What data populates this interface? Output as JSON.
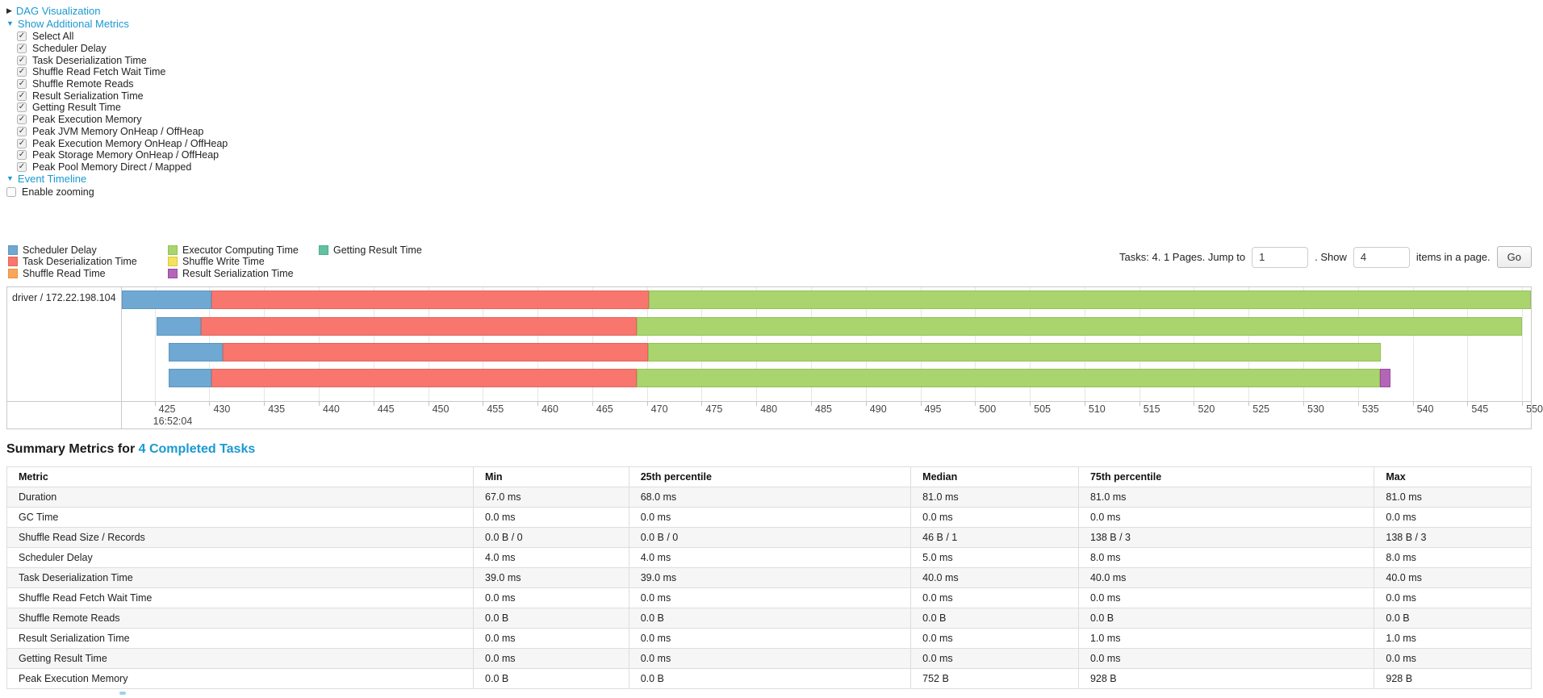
{
  "colors": {
    "link": "#1a99d1"
  },
  "controls": {
    "dag_label": "DAG Visualization",
    "show_metrics_label": "Show Additional Metrics",
    "checkboxes": [
      "Select All",
      "Scheduler Delay",
      "Task Deserialization Time",
      "Shuffle Read Fetch Wait Time",
      "Shuffle Remote Reads",
      "Result Serialization Time",
      "Getting Result Time",
      "Peak Execution Memory",
      "Peak JVM Memory OnHeap / OffHeap",
      "Peak Execution Memory OnHeap / OffHeap",
      "Peak Storage Memory OnHeap / OffHeap",
      "Peak Pool Memory Direct / Mapped"
    ],
    "event_timeline_label": "Event Timeline",
    "enable_zooming_label": "Enable zooming"
  },
  "pagination": {
    "tasks_text": "Tasks: 4. 1 Pages. Jump to",
    "jump_value": "1",
    "show_text": ". Show",
    "show_value": "4",
    "items_text": "items in a page.",
    "go_label": "Go"
  },
  "chart_data": {
    "type": "timeline",
    "row_label": "driver / 172.22.198.104",
    "time_label": "16:52:04",
    "axis": {
      "min": 422.0,
      "max": 550.8,
      "tick_start": 425,
      "tick_end": 550,
      "tick_step": 5
    },
    "palette": {
      "scheduler_delay": {
        "fill": "#6fa8d2",
        "border": "#5b97c2"
      },
      "task_deserialization": {
        "fill": "#f8766d",
        "border": "#e5655d"
      },
      "shuffle_read": {
        "fill": "#f9a65a",
        "border": "#e8933f"
      },
      "executor_computing": {
        "fill": "#a9d46e",
        "border": "#93c254"
      },
      "shuffle_write": {
        "fill": "#f2e25d",
        "border": "#dcc93c"
      },
      "result_serialization": {
        "fill": "#b465b8",
        "border": "#9a4d9e"
      },
      "getting_result": {
        "fill": "#61c0a1",
        "border": "#4daf8d"
      }
    },
    "legend_columns": [
      [
        {
          "label": "Scheduler Delay",
          "metric": "scheduler_delay"
        },
        {
          "label": "Task Deserialization Time",
          "metric": "task_deserialization"
        },
        {
          "label": "Shuffle Read Time",
          "metric": "shuffle_read"
        }
      ],
      [
        {
          "label": "Executor Computing Time",
          "metric": "executor_computing"
        },
        {
          "label": "Shuffle Write Time",
          "metric": "shuffle_write"
        },
        {
          "label": "Result Serialization Time",
          "metric": "result_serialization"
        }
      ],
      [
        {
          "label": "Getting Result Time",
          "metric": "getting_result"
        }
      ]
    ],
    "tasks": [
      {
        "segments": [
          {
            "metric": "scheduler_delay",
            "start": 422.0,
            "end": 430.2
          },
          {
            "metric": "task_deserialization",
            "start": 430.2,
            "end": 470.2
          },
          {
            "metric": "executor_computing",
            "start": 470.2,
            "end": 550.8
          }
        ]
      },
      {
        "segments": [
          {
            "metric": "scheduler_delay",
            "start": 425.2,
            "end": 429.2
          },
          {
            "metric": "task_deserialization",
            "start": 429.2,
            "end": 469.1
          },
          {
            "metric": "executor_computing",
            "start": 469.1,
            "end": 550.0
          }
        ]
      },
      {
        "segments": [
          {
            "metric": "scheduler_delay",
            "start": 426.3,
            "end": 431.2
          },
          {
            "metric": "task_deserialization",
            "start": 431.2,
            "end": 470.1
          },
          {
            "metric": "executor_computing",
            "start": 470.1,
            "end": 537.1
          }
        ]
      },
      {
        "segments": [
          {
            "metric": "scheduler_delay",
            "start": 426.3,
            "end": 430.2
          },
          {
            "metric": "task_deserialization",
            "start": 430.2,
            "end": 469.1
          },
          {
            "metric": "executor_computing",
            "start": 469.1,
            "end": 537.0
          },
          {
            "metric": "result_serialization",
            "start": 537.0,
            "end": 538.0
          }
        ]
      }
    ]
  },
  "summary": {
    "heading_prefix": "Summary Metrics for ",
    "heading_link": "4 Completed Tasks",
    "table": {
      "headers": [
        "Metric",
        "Min",
        "25th percentile",
        "Median",
        "75th percentile",
        "Max"
      ],
      "col_widths_pct": [
        30.6,
        10.2,
        18.5,
        11.0,
        19.4,
        10.3
      ],
      "rows": [
        [
          "Duration",
          "67.0 ms",
          "68.0 ms",
          "81.0 ms",
          "81.0 ms",
          "81.0 ms"
        ],
        [
          "GC Time",
          "0.0 ms",
          "0.0 ms",
          "0.0 ms",
          "0.0 ms",
          "0.0 ms"
        ],
        [
          "Shuffle Read Size / Records",
          "0.0 B / 0",
          "0.0 B / 0",
          "46 B / 1",
          "138 B / 3",
          "138 B / 3"
        ],
        [
          "Scheduler Delay",
          "4.0 ms",
          "4.0 ms",
          "5.0 ms",
          "8.0 ms",
          "8.0 ms"
        ],
        [
          "Task Deserialization Time",
          "39.0 ms",
          "39.0 ms",
          "40.0 ms",
          "40.0 ms",
          "40.0 ms"
        ],
        [
          "Shuffle Read Fetch Wait Time",
          "0.0 ms",
          "0.0 ms",
          "0.0 ms",
          "0.0 ms",
          "0.0 ms"
        ],
        [
          "Shuffle Remote Reads",
          "0.0 B",
          "0.0 B",
          "0.0 B",
          "0.0 B",
          "0.0 B"
        ],
        [
          "Result Serialization Time",
          "0.0 ms",
          "0.0 ms",
          "0.0 ms",
          "1.0 ms",
          "1.0 ms"
        ],
        [
          "Getting Result Time",
          "0.0 ms",
          "0.0 ms",
          "0.0 ms",
          "0.0 ms",
          "0.0 ms"
        ],
        [
          "Peak Execution Memory",
          "0.0 B",
          "0.0 B",
          "752 B",
          "928 B",
          "928 B"
        ]
      ]
    }
  }
}
